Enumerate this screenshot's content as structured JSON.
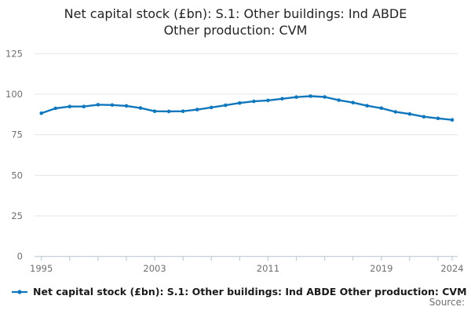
{
  "title": {
    "line1": "Net capital stock (£bn): S.1: Other buildings: Ind ABDE",
    "line2": "Other production: CVM"
  },
  "legend": {
    "label": "Net capital stock (£bn): S.1: Other buildings: Ind ABDE Other production: CVM"
  },
  "footer": {
    "source_label": "Source:"
  },
  "colors": {
    "line": "#1077bd",
    "grid": "#e4e4e4",
    "axis": "#c0cdda",
    "tick_label": "#6f6f6f",
    "title_text": "#242424",
    "legend_text": "#1a1a1a",
    "source_text": "#6f6f6f"
  },
  "chart_data": {
    "type": "line",
    "title": "Net capital stock (£bn): S.1: Other buildings: Ind ABDE Other production: CVM",
    "xlabel": "",
    "ylabel": "",
    "x": [
      1995,
      1996,
      1997,
      1998,
      1999,
      2000,
      2001,
      2002,
      2003,
      2004,
      2005,
      2006,
      2007,
      2008,
      2009,
      2010,
      2011,
      2012,
      2013,
      2014,
      2015,
      2016,
      2017,
      2018,
      2019,
      2020,
      2021,
      2022,
      2023,
      2024
    ],
    "series": [
      {
        "name": "Net capital stock (£bn): S.1: Other buildings: Ind ABDE Other production: CVM",
        "values": [
          88.3,
          91.3,
          92.4,
          92.4,
          93.5,
          93.3,
          92.8,
          91.5,
          89.5,
          89.4,
          89.5,
          90.5,
          91.8,
          93.2,
          94.6,
          95.6,
          96.2,
          97.2,
          98.2,
          98.8,
          98.3,
          96.3,
          94.8,
          92.9,
          91.4,
          89.1,
          87.8,
          86.1,
          85.1,
          84.2
        ]
      }
    ],
    "ylim": [
      0,
      125
    ],
    "yticks": [
      0,
      25,
      50,
      75,
      100,
      125
    ],
    "xlim": [
      1995,
      2024
    ],
    "xtick_labels": [
      1995,
      2003,
      2011,
      2019,
      2024
    ],
    "xticks_minor": [
      1995,
      1997,
      1999,
      2001,
      2003,
      2005,
      2007,
      2009,
      2011,
      2013,
      2015,
      2017,
      2019,
      2021,
      2023,
      2024
    ],
    "grid": true,
    "marker": "circle",
    "legend_position": "bottom-left"
  }
}
